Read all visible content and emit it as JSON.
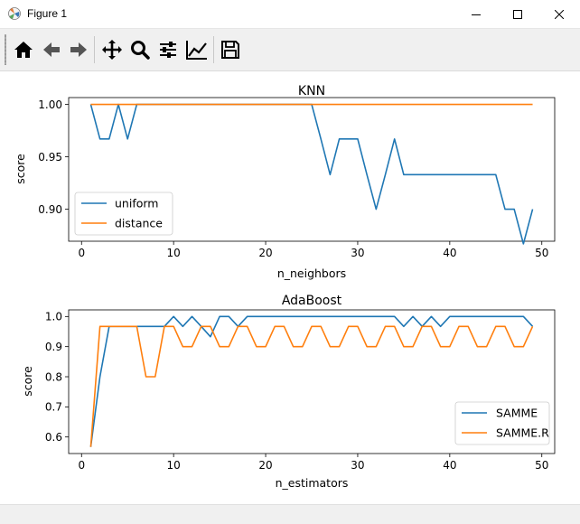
{
  "window": {
    "title": "Figure 1"
  },
  "toolbar": {
    "items": [
      "home-icon",
      "back-arrow-icon",
      "forward-arrow-icon",
      "pan-icon",
      "zoom-icon",
      "subplots-icon",
      "edit-axes-icon",
      "save-icon"
    ]
  },
  "colors": {
    "series1": "#1f77b4",
    "series2": "#ff7f0e"
  },
  "chart_data": [
    {
      "type": "line",
      "title": "KNN",
      "xlabel": "n_neighbors",
      "ylabel": "score",
      "xlim": [
        -1.4,
        51.4
      ],
      "ylim": [
        0.8695,
        1.0065
      ],
      "xticks": [
        0,
        10,
        20,
        30,
        40,
        50
      ],
      "yticks": [
        0.9,
        0.95,
        1.0
      ],
      "ytick_labels": [
        "0.90",
        "0.95",
        "1.00"
      ],
      "grid": false,
      "legend": "lower-left",
      "x": [
        1,
        2,
        3,
        4,
        5,
        6,
        7,
        8,
        9,
        10,
        11,
        12,
        13,
        14,
        15,
        16,
        17,
        18,
        19,
        20,
        21,
        22,
        23,
        24,
        25,
        26,
        27,
        28,
        29,
        30,
        31,
        32,
        33,
        34,
        35,
        36,
        37,
        38,
        39,
        40,
        41,
        42,
        43,
        44,
        45,
        46,
        47,
        48,
        49
      ],
      "series": [
        {
          "name": "uniform",
          "values": [
            1.0,
            0.967,
            0.967,
            1.0,
            0.967,
            1.0,
            1.0,
            1.0,
            1.0,
            1.0,
            1.0,
            1.0,
            1.0,
            1.0,
            1.0,
            1.0,
            1.0,
            1.0,
            1.0,
            1.0,
            1.0,
            1.0,
            1.0,
            1.0,
            1.0,
            0.967,
            0.933,
            0.967,
            0.967,
            0.967,
            0.933,
            0.9,
            0.933,
            0.967,
            0.933,
            0.933,
            0.933,
            0.933,
            0.933,
            0.933,
            0.933,
            0.933,
            0.933,
            0.933,
            0.933,
            0.9,
            0.9,
            0.867,
            0.9
          ]
        },
        {
          "name": "distance",
          "values": [
            1.0,
            1.0,
            1.0,
            1.0,
            1.0,
            1.0,
            1.0,
            1.0,
            1.0,
            1.0,
            1.0,
            1.0,
            1.0,
            1.0,
            1.0,
            1.0,
            1.0,
            1.0,
            1.0,
            1.0,
            1.0,
            1.0,
            1.0,
            1.0,
            1.0,
            1.0,
            1.0,
            1.0,
            1.0,
            1.0,
            1.0,
            1.0,
            1.0,
            1.0,
            1.0,
            1.0,
            1.0,
            1.0,
            1.0,
            1.0,
            1.0,
            1.0,
            1.0,
            1.0,
            1.0,
            1.0,
            1.0,
            1.0,
            1.0
          ]
        }
      ]
    },
    {
      "type": "line",
      "title": "AdaBoost",
      "xlabel": "n_estimators",
      "ylabel": "score",
      "xlim": [
        -1.4,
        51.4
      ],
      "ylim": [
        0.545,
        1.022
      ],
      "xticks": [
        0,
        10,
        20,
        30,
        40,
        50
      ],
      "yticks": [
        0.6,
        0.7,
        0.8,
        0.9,
        1.0
      ],
      "ytick_labels": [
        "0.6",
        "0.7",
        "0.8",
        "0.9",
        "1.0"
      ],
      "grid": false,
      "legend": "lower-right",
      "x": [
        1,
        2,
        3,
        4,
        5,
        6,
        7,
        8,
        9,
        10,
        11,
        12,
        13,
        14,
        15,
        16,
        17,
        18,
        19,
        20,
        21,
        22,
        23,
        24,
        25,
        26,
        27,
        28,
        29,
        30,
        31,
        32,
        33,
        34,
        35,
        36,
        37,
        38,
        39,
        40,
        41,
        42,
        43,
        44,
        45,
        46,
        47,
        48,
        49
      ],
      "series": [
        {
          "name": "SAMME",
          "values": [
            0.567,
            0.8,
            0.967,
            0.967,
            0.967,
            0.967,
            0.967,
            0.967,
            0.967,
            1.0,
            0.967,
            1.0,
            0.967,
            0.933,
            1.0,
            1.0,
            0.967,
            1.0,
            1.0,
            1.0,
            1.0,
            1.0,
            1.0,
            1.0,
            1.0,
            1.0,
            1.0,
            1.0,
            1.0,
            1.0,
            1.0,
            1.0,
            1.0,
            1.0,
            0.967,
            1.0,
            0.967,
            1.0,
            0.967,
            1.0,
            1.0,
            1.0,
            1.0,
            1.0,
            1.0,
            1.0,
            1.0,
            1.0,
            0.967
          ]
        },
        {
          "name": "SAMME.R",
          "values": [
            0.567,
            0.967,
            0.967,
            0.967,
            0.967,
            0.967,
            0.8,
            0.8,
            0.967,
            0.967,
            0.9,
            0.9,
            0.967,
            0.967,
            0.9,
            0.9,
            0.967,
            0.967,
            0.9,
            0.9,
            0.967,
            0.967,
            0.9,
            0.9,
            0.967,
            0.967,
            0.9,
            0.9,
            0.967,
            0.967,
            0.9,
            0.9,
            0.967,
            0.967,
            0.9,
            0.9,
            0.967,
            0.967,
            0.9,
            0.9,
            0.967,
            0.967,
            0.9,
            0.9,
            0.967,
            0.967,
            0.9,
            0.9,
            0.967
          ]
        }
      ]
    }
  ]
}
